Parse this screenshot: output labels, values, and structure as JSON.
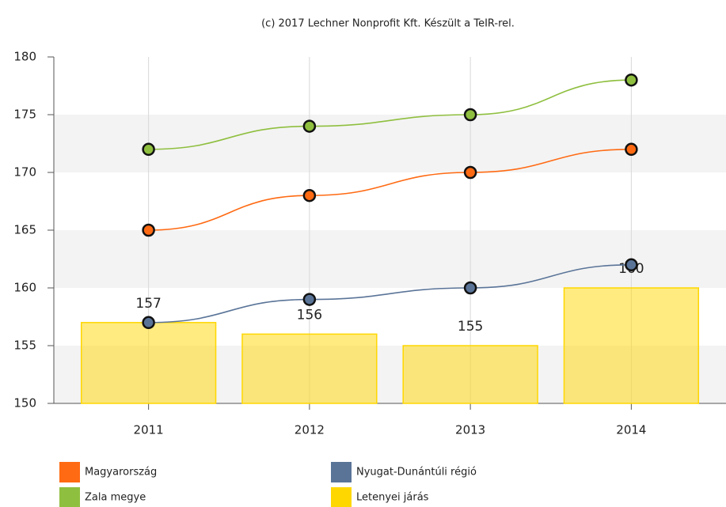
{
  "chart_data": {
    "type": "bar",
    "title": "(c) 2017 Lechner Nonprofit Kft. Készült a TeIR-rel.",
    "categories": [
      "2011",
      "2012",
      "2013",
      "2014"
    ],
    "series": [
      {
        "name": "Magyarország",
        "type": "line",
        "color": "#ff6a13",
        "values": [
          165,
          168,
          170,
          172
        ]
      },
      {
        "name": "Nyugat-Dunántúli régió",
        "type": "line",
        "color": "#5a7498",
        "values": [
          157,
          159,
          160,
          162
        ]
      },
      {
        "name": "Zala megye",
        "type": "line",
        "color": "#8fbf3f",
        "values": [
          172,
          174,
          175,
          178
        ]
      },
      {
        "name": "Letenyei járás",
        "type": "bar",
        "color": "#ffd700",
        "values": [
          157,
          156,
          155,
          160
        ],
        "data_labels": true
      }
    ],
    "ylim": [
      150,
      180
    ],
    "yticks": [
      150,
      155,
      160,
      165,
      170,
      175,
      180
    ],
    "grid": true,
    "legend": "bottom"
  }
}
